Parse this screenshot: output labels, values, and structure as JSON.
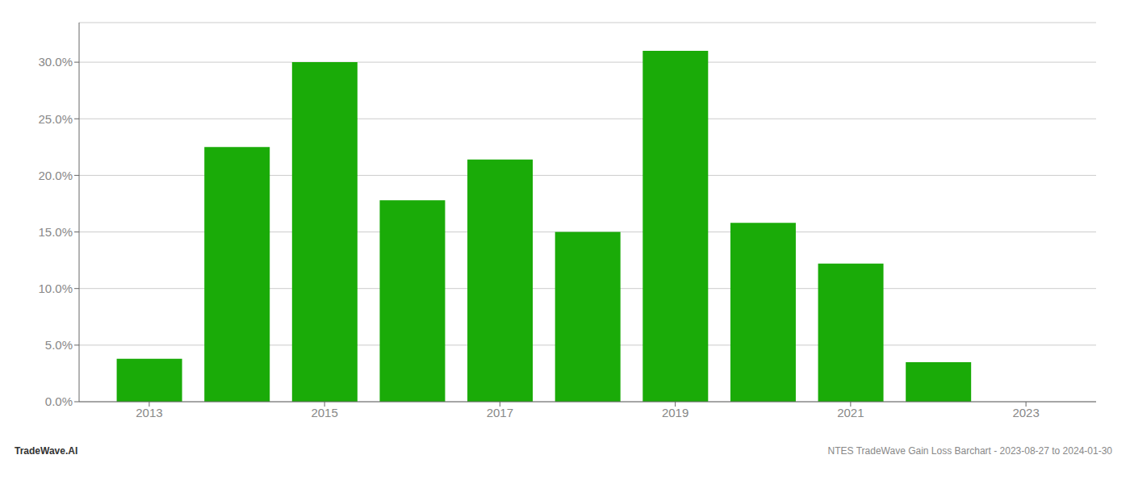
{
  "chart_data": {
    "type": "bar",
    "x": [
      2013,
      2014,
      2015,
      2016,
      2017,
      2018,
      2019,
      2020,
      2021,
      2022,
      2023
    ],
    "values": [
      0.038,
      0.225,
      0.3,
      0.178,
      0.214,
      0.15,
      0.31,
      0.158,
      0.122,
      0.035,
      0.0
    ],
    "color": "#1aab08",
    "xlim": [
      2012.2,
      2023.8
    ],
    "xticks": [
      2013,
      2015,
      2017,
      2019,
      2021,
      2023
    ],
    "ylim": [
      0,
      0.335
    ],
    "yticks": [
      {
        "value": 0.0,
        "label": "0.0%"
      },
      {
        "value": 0.05,
        "label": "5.0%"
      },
      {
        "value": 0.1,
        "label": "10.0%"
      },
      {
        "value": 0.15,
        "label": "15.0%"
      },
      {
        "value": 0.2,
        "label": "20.0%"
      },
      {
        "value": 0.25,
        "label": "25.0%"
      },
      {
        "value": 0.3,
        "label": "30.0%"
      }
    ],
    "grid": true,
    "annotations": [
      "TradeWave.AI",
      "NTES TradeWave Gain Loss Barchart - 2023-08-27 to 2024-01-30"
    ]
  }
}
